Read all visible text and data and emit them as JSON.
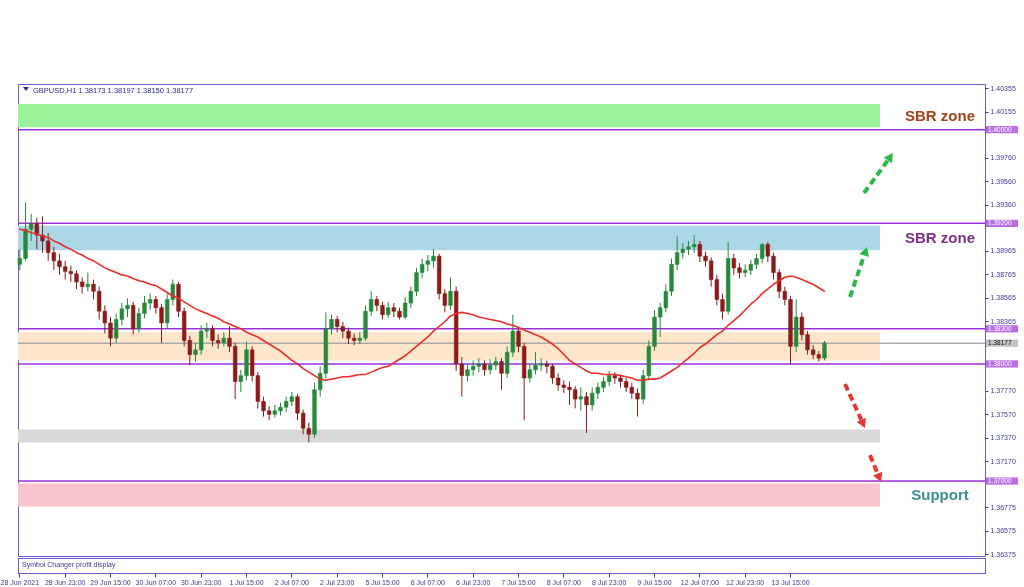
{
  "chart_data": {
    "type": "candlestick",
    "title": "GBPUSD,H1 1.38173 1.38197 1.38150 1.38177",
    "categories": [
      "28 Jun 2021",
      null,
      null,
      null,
      null,
      null,
      null,
      null,
      "28 Jun 23:00",
      null,
      null,
      null,
      null,
      null,
      null,
      null,
      "29 Jun 15:00",
      null,
      null,
      null,
      null,
      null,
      null,
      null,
      "30 Jun 07:00",
      null,
      null,
      null,
      null,
      null,
      null,
      null,
      "30 Jun 23:00",
      null,
      null,
      null,
      null,
      null,
      null,
      null,
      "1 Jul 15:00",
      null,
      null,
      null,
      null,
      null,
      null,
      null,
      "2 Jul 07:00",
      null,
      null,
      null,
      null,
      null,
      null,
      null,
      "2 Jul 23:00",
      null,
      null,
      null,
      null,
      null,
      null,
      null,
      "5 Jul 15:00",
      null,
      null,
      null,
      null,
      null,
      null,
      null,
      "6 Jul 07:00",
      null,
      null,
      null,
      null,
      null,
      null,
      null,
      "6 Jul 23:00",
      null,
      null,
      null,
      null,
      null,
      null,
      null,
      "7 Jul 15:00",
      null,
      null,
      null,
      null,
      null,
      null,
      null,
      "8 Jul 07:00",
      null,
      null,
      null,
      null,
      null,
      null,
      null,
      "8 Jul 23:00",
      null,
      null,
      null,
      null,
      null,
      null,
      null,
      "9 Jul 15:00",
      null,
      null,
      null,
      null,
      null,
      null,
      null,
      "12 Jul 07:00",
      null,
      null,
      null,
      null,
      null,
      null,
      null,
      "12 Jul 23:00",
      null,
      null,
      null,
      null,
      null,
      null,
      null,
      "13 Jul 15:00",
      null,
      null,
      null,
      null,
      null,
      null,
      null,
      null,
      null,
      null,
      null,
      null,
      null,
      null,
      null,
      null,
      null,
      null,
      null,
      null,
      null,
      null,
      null,
      null,
      null,
      null,
      null,
      null,
      null,
      null,
      null,
      null,
      null,
      null
    ],
    "ohlc": [
      [
        1.3885,
        1.3898,
        1.388,
        1.389
      ],
      [
        1.389,
        1.3938,
        1.3888,
        1.3915
      ],
      [
        1.3915,
        1.3928,
        1.3905,
        1.392
      ],
      [
        1.392,
        1.3925,
        1.3898,
        1.391
      ],
      [
        1.391,
        1.3926,
        1.3895,
        1.3905
      ],
      [
        1.3905,
        1.3912,
        1.3888,
        1.3895
      ],
      [
        1.3895,
        1.39,
        1.388,
        1.3888
      ],
      [
        1.3888,
        1.3894,
        1.3876,
        1.3883
      ],
      [
        1.3883,
        1.3888,
        1.3872,
        1.3879
      ],
      [
        1.3879,
        1.3884,
        1.387,
        1.3877
      ],
      [
        1.3877,
        1.388,
        1.3864,
        1.387
      ],
      [
        1.387,
        1.3874,
        1.386,
        1.3866
      ],
      [
        1.3866,
        1.3878,
        1.3862,
        1.3868
      ],
      [
        1.3868,
        1.3872,
        1.3855,
        1.3862
      ],
      [
        1.3862,
        1.3866,
        1.3838,
        1.3845
      ],
      [
        1.3845,
        1.385,
        1.3826,
        1.3835
      ],
      [
        1.3835,
        1.384,
        1.3815,
        1.3822
      ],
      [
        1.3822,
        1.3843,
        1.3818,
        1.3838
      ],
      [
        1.3838,
        1.3852,
        1.3833,
        1.3847
      ],
      [
        1.3847,
        1.3856,
        1.384,
        1.385
      ],
      [
        1.385,
        1.3853,
        1.3825,
        1.383
      ],
      [
        1.383,
        1.3848,
        1.3827,
        1.3843
      ],
      [
        1.3843,
        1.3858,
        1.3839,
        1.3852
      ],
      [
        1.3852,
        1.386,
        1.3846,
        1.3855
      ],
      [
        1.3855,
        1.3858,
        1.3843,
        1.3848
      ],
      [
        1.3848,
        1.3851,
        1.3818,
        1.3835
      ],
      [
        1.3835,
        1.386,
        1.383,
        1.3855
      ],
      [
        1.3855,
        1.3872,
        1.385,
        1.3868
      ],
      [
        1.3868,
        1.387,
        1.384,
        1.3845
      ],
      [
        1.3845,
        1.3848,
        1.3815,
        1.382
      ],
      [
        1.382,
        1.3824,
        1.3799,
        1.3808
      ],
      [
        1.3808,
        1.3818,
        1.3802,
        1.3812
      ],
      [
        1.3812,
        1.3833,
        1.3808,
        1.3828
      ],
      [
        1.3828,
        1.3835,
        1.3822,
        1.383
      ],
      [
        1.383,
        1.3833,
        1.3815,
        1.382
      ],
      [
        1.382,
        1.3825,
        1.3813,
        1.3818
      ],
      [
        1.3818,
        1.3827,
        1.3815,
        1.3822
      ],
      [
        1.3822,
        1.3832,
        1.381,
        1.3815
      ],
      [
        1.3815,
        1.3818,
        1.377,
        1.3785
      ],
      [
        1.3785,
        1.3795,
        1.3776,
        1.379
      ],
      [
        1.379,
        1.3819,
        1.3786,
        1.3812
      ],
      [
        1.3812,
        1.3815,
        1.3785,
        1.379
      ],
      [
        1.379,
        1.3793,
        1.3762,
        1.3768
      ],
      [
        1.3768,
        1.3772,
        1.3755,
        1.376
      ],
      [
        1.376,
        1.3764,
        1.3752,
        1.3757
      ],
      [
        1.3757,
        1.3765,
        1.3754,
        1.376
      ],
      [
        1.376,
        1.3767,
        1.3756,
        1.3763
      ],
      [
        1.3763,
        1.3772,
        1.3759,
        1.3768
      ],
      [
        1.3768,
        1.3776,
        1.3764,
        1.3772
      ],
      [
        1.3772,
        1.3774,
        1.3752,
        1.3758
      ],
      [
        1.3758,
        1.3761,
        1.374,
        1.3745
      ],
      [
        1.3745,
        1.375,
        1.3733,
        1.374
      ],
      [
        1.374,
        1.3784,
        1.3737,
        1.3778
      ],
      [
        1.3778,
        1.3798,
        1.3772,
        1.3792
      ],
      [
        1.3792,
        1.3844,
        1.3788,
        1.383
      ],
      [
        1.383,
        1.3842,
        1.3825,
        1.3838
      ],
      [
        1.3838,
        1.3841,
        1.3827,
        1.3832
      ],
      [
        1.3832,
        1.3836,
        1.3822,
        1.3828
      ],
      [
        1.3828,
        1.3831,
        1.3817,
        1.3822
      ],
      [
        1.3822,
        1.3826,
        1.3816,
        1.382
      ],
      [
        1.382,
        1.3827,
        1.3817,
        1.3822
      ],
      [
        1.3822,
        1.385,
        1.382,
        1.3845
      ],
      [
        1.3845,
        1.3862,
        1.3841,
        1.3855
      ],
      [
        1.3855,
        1.3858,
        1.3845,
        1.385
      ],
      [
        1.385,
        1.3853,
        1.3838,
        1.3842
      ],
      [
        1.3842,
        1.3853,
        1.3839,
        1.3848
      ],
      [
        1.3848,
        1.3852,
        1.384,
        1.3845
      ],
      [
        1.3845,
        1.3848,
        1.3838,
        1.384
      ],
      [
        1.384,
        1.3857,
        1.3838,
        1.3852
      ],
      [
        1.3852,
        1.3866,
        1.3848,
        1.3862
      ],
      [
        1.3862,
        1.3882,
        1.3858,
        1.3878
      ],
      [
        1.3878,
        1.389,
        1.3873,
        1.3885
      ],
      [
        1.3885,
        1.3893,
        1.3879,
        1.3888
      ],
      [
        1.3888,
        1.3898,
        1.3882,
        1.3892
      ],
      [
        1.3892,
        1.3894,
        1.3855,
        1.386
      ],
      [
        1.386,
        1.3864,
        1.3844,
        1.385
      ],
      [
        1.385,
        1.3874,
        1.3846,
        1.3862
      ],
      [
        1.3862,
        1.3866,
        1.3794,
        1.38
      ],
      [
        1.38,
        1.3806,
        1.3772,
        1.379
      ],
      [
        1.379,
        1.38,
        1.3785,
        1.3795
      ],
      [
        1.3795,
        1.3803,
        1.379,
        1.3798
      ],
      [
        1.3798,
        1.3805,
        1.3793,
        1.38
      ],
      [
        1.38,
        1.3803,
        1.379,
        1.3795
      ],
      [
        1.3795,
        1.3804,
        1.3791,
        1.3799
      ],
      [
        1.3799,
        1.3806,
        1.3795,
        1.3802
      ],
      [
        1.3802,
        1.3805,
        1.3778,
        1.3792
      ],
      [
        1.3792,
        1.3815,
        1.3788,
        1.381
      ],
      [
        1.381,
        1.3842,
        1.3806,
        1.3828
      ],
      [
        1.3828,
        1.3832,
        1.381,
        1.3815
      ],
      [
        1.3815,
        1.3818,
        1.3752,
        1.3788
      ],
      [
        1.3788,
        1.38,
        1.3784,
        1.3795
      ],
      [
        1.3795,
        1.381,
        1.3791,
        1.3799
      ],
      [
        1.3799,
        1.3805,
        1.3794,
        1.38
      ],
      [
        1.38,
        1.3803,
        1.3792,
        1.3798
      ],
      [
        1.3798,
        1.38,
        1.3783,
        1.3788
      ],
      [
        1.3788,
        1.3792,
        1.3777,
        1.3782
      ],
      [
        1.3782,
        1.3786,
        1.3775,
        1.378
      ],
      [
        1.378,
        1.3785,
        1.3765,
        1.3778
      ],
      [
        1.3778,
        1.3781,
        1.3762,
        1.377
      ],
      [
        1.377,
        1.378,
        1.376,
        1.3772
      ],
      [
        1.3772,
        1.3776,
        1.3741,
        1.3765
      ],
      [
        1.3765,
        1.378,
        1.376,
        1.3775
      ],
      [
        1.3775,
        1.3784,
        1.377,
        1.378
      ],
      [
        1.378,
        1.3789,
        1.3776,
        1.3785
      ],
      [
        1.3785,
        1.3794,
        1.3781,
        1.379
      ],
      [
        1.379,
        1.3793,
        1.3783,
        1.3788
      ],
      [
        1.3788,
        1.3791,
        1.378,
        1.3785
      ],
      [
        1.3785,
        1.3788,
        1.3776,
        1.378
      ],
      [
        1.378,
        1.3784,
        1.377,
        1.3775
      ],
      [
        1.3775,
        1.3779,
        1.3755,
        1.377
      ],
      [
        1.377,
        1.3795,
        1.3766,
        1.379
      ],
      [
        1.379,
        1.382,
        1.3786,
        1.3815
      ],
      [
        1.3815,
        1.3846,
        1.3811,
        1.384
      ],
      [
        1.384,
        1.3852,
        1.3823,
        1.3848
      ],
      [
        1.3848,
        1.3868,
        1.3844,
        1.3862
      ],
      [
        1.3862,
        1.389,
        1.3858,
        1.3885
      ],
      [
        1.3885,
        1.3909,
        1.388,
        1.3895
      ],
      [
        1.3895,
        1.3903,
        1.389,
        1.3898
      ],
      [
        1.3898,
        1.3905,
        1.3893,
        1.39
      ],
      [
        1.39,
        1.391,
        1.3895,
        1.3902
      ],
      [
        1.3902,
        1.3905,
        1.3887,
        1.3892
      ],
      [
        1.3892,
        1.3896,
        1.3883,
        1.3888
      ],
      [
        1.3888,
        1.3891,
        1.3866,
        1.3872
      ],
      [
        1.3872,
        1.3876,
        1.385,
        1.3855
      ],
      [
        1.3855,
        1.386,
        1.3838,
        1.3845
      ],
      [
        1.3845,
        1.3904,
        1.3842,
        1.389
      ],
      [
        1.389,
        1.3894,
        1.3876,
        1.3882
      ],
      [
        1.3882,
        1.3886,
        1.3873,
        1.3878
      ],
      [
        1.3878,
        1.3885,
        1.3874,
        1.388
      ],
      [
        1.388,
        1.3889,
        1.3876,
        1.3885
      ],
      [
        1.3885,
        1.3894,
        1.3881,
        1.389
      ],
      [
        1.389,
        1.3903,
        1.3886,
        1.3902
      ],
      [
        1.3902,
        1.3904,
        1.3887,
        1.3892
      ],
      [
        1.3892,
        1.3895,
        1.3872,
        1.3878
      ],
      [
        1.3878,
        1.3881,
        1.3856,
        1.3862
      ],
      [
        1.3862,
        1.3866,
        1.385,
        1.3855
      ],
      [
        1.3855,
        1.3858,
        1.38,
        1.3815
      ],
      [
        1.3815,
        1.3855,
        1.381,
        1.384
      ],
      [
        1.384,
        1.3844,
        1.382,
        1.3825
      ],
      [
        1.3825,
        1.3828,
        1.3808,
        1.3812
      ],
      [
        1.3812,
        1.3816,
        1.3804,
        1.3808
      ],
      [
        1.3808,
        1.3811,
        1.3802,
        1.3805
      ],
      [
        1.3805,
        1.38197,
        1.3803,
        1.38177
      ],
      null,
      null,
      null,
      null,
      null,
      null,
      null,
      null,
      null,
      null,
      null,
      null,
      null,
      null,
      null,
      null,
      null,
      null,
      null,
      null,
      null,
      null,
      null,
      null,
      null,
      null,
      null,
      null
    ],
    "colors": [
      "#26893a",
      "#26893a",
      "#26893a",
      "#8c1c1c",
      "#8c1c1c",
      "#8c1c1c",
      "#8c1c1c",
      "#8c1c1c",
      "#8c1c1c",
      "#8c1c1c",
      "#8c1c1c",
      "#8c1c1c",
      "#26893a",
      "#8c1c1c",
      "#8c1c1c",
      "#8c1c1c",
      "#8c1c1c",
      "#26893a",
      "#26893a",
      "#26893a",
      "#8c1c1c",
      "#26893a",
      "#26893a",
      "#26893a",
      "#8c1c1c",
      "#8c1c1c",
      "#26893a",
      "#26893a",
      "#8c1c1c",
      "#8c1c1c",
      "#8c1c1c",
      "#26893a",
      "#26893a",
      "#26893a",
      "#8c1c1c",
      "#8c1c1c",
      "#26893a",
      "#8c1c1c",
      "#8c1c1c",
      "#26893a",
      "#26893a",
      "#8c1c1c",
      "#8c1c1c",
      "#8c1c1c",
      "#8c1c1c",
      "#26893a",
      "#26893a",
      "#26893a",
      "#26893a",
      "#8c1c1c",
      "#8c1c1c",
      "#8c1c1c",
      "#26893a",
      "#26893a",
      "#26893a",
      "#26893a",
      "#8c1c1c",
      "#8c1c1c",
      "#8c1c1c",
      "#8c1c1c",
      "#26893a",
      "#26893a",
      "#26893a",
      "#8c1c1c",
      "#8c1c1c",
      "#26893a",
      "#8c1c1c",
      "#8c1c1c",
      "#26893a",
      "#26893a",
      "#26893a",
      "#26893a",
      "#26893a",
      "#26893a",
      "#8c1c1c",
      "#8c1c1c",
      "#26893a",
      "#8c1c1c",
      "#8c1c1c",
      "#26893a",
      "#26893a",
      "#26893a",
      "#8c1c1c",
      "#26893a",
      "#26893a",
      "#8c1c1c",
      "#26893a",
      "#26893a",
      "#8c1c1c",
      "#8c1c1c",
      "#26893a",
      "#26893a",
      "#26893a",
      "#8c1c1c",
      "#8c1c1c",
      "#8c1c1c",
      "#8c1c1c",
      "#8c1c1c",
      "#8c1c1c",
      "#26893a",
      "#8c1c1c",
      "#26893a",
      "#26893a",
      "#26893a",
      "#26893a",
      "#8c1c1c",
      "#8c1c1c",
      "#8c1c1c",
      "#8c1c1c",
      "#8c1c1c",
      "#26893a",
      "#26893a",
      "#26893a",
      "#26893a",
      "#26893a",
      "#26893a",
      "#26893a",
      "#26893a",
      "#26893a",
      "#26893a",
      "#8c1c1c",
      "#8c1c1c",
      "#8c1c1c",
      "#8c1c1c",
      "#8c1c1c",
      "#26893a",
      "#8c1c1c",
      "#8c1c1c",
      "#26893a",
      "#26893a",
      "#26893a",
      "#26893a",
      "#8c1c1c",
      "#8c1c1c",
      "#8c1c1c",
      "#8c1c1c",
      "#8c1c1c",
      "#26893a",
      "#8c1c1c",
      "#8c1c1c",
      "#8c1c1c",
      "#8c1c1c",
      "#26893a",
      null,
      null,
      null,
      null,
      null,
      null,
      null,
      null,
      null,
      null,
      null,
      null,
      null,
      null,
      null,
      null,
      null,
      null,
      null,
      null,
      null,
      null,
      null,
      null,
      null,
      null,
      null,
      null
    ],
    "series": [
      {
        "type": "line",
        "color": "#e8302a",
        "values": [
          1.3915,
          1.3914,
          1.3912,
          1.3911,
          1.3909,
          1.3908,
          1.3905,
          1.3903,
          1.39,
          1.3898,
          1.3895,
          1.3893,
          1.389,
          1.3888,
          1.3885,
          1.3882,
          1.388,
          1.3878,
          1.3876,
          1.3875,
          1.3873,
          1.3871,
          1.387,
          1.3868,
          1.3867,
          1.3864,
          1.3861,
          1.3858,
          1.3856,
          1.3853,
          1.385,
          1.3847,
          1.3845,
          1.3843,
          1.3841,
          1.3839,
          1.3836,
          1.3834,
          1.3832,
          1.383,
          1.3827,
          1.3825,
          1.3823,
          1.382,
          1.3817,
          1.3814,
          1.3811,
          1.3807,
          1.3803,
          1.38,
          1.3796,
          1.3793,
          1.379,
          1.3787,
          1.3786,
          1.3787,
          1.3788,
          1.3789,
          1.3789,
          1.379,
          1.3791,
          1.3791,
          1.3793,
          1.3795,
          1.3797,
          1.3798,
          1.3801,
          1.3804,
          1.3807,
          1.3811,
          1.3815,
          1.3819,
          1.3823,
          1.3828,
          1.3832,
          1.3836,
          1.3841,
          1.3843,
          1.3844,
          1.3843,
          1.3842,
          1.384,
          1.3839,
          1.3838,
          1.3837,
          1.3836,
          1.3834,
          1.3833,
          1.3831,
          1.3829,
          1.3827,
          1.3825,
          1.3823,
          1.382,
          1.3817,
          1.3813,
          1.3808,
          1.3803,
          1.38,
          1.3797,
          1.3794,
          1.3792,
          1.3792,
          1.3791,
          1.3791,
          1.3791,
          1.379,
          1.3789,
          1.3788,
          1.3786,
          1.3786,
          1.3787,
          1.3787,
          1.3788,
          1.3791,
          1.3794,
          1.3797,
          1.3801,
          1.3805,
          1.3809,
          1.3814,
          1.3817,
          1.3821,
          1.3825,
          1.3828,
          1.3833,
          1.3837,
          1.3841,
          1.3846,
          1.3851,
          1.3855,
          1.386,
          1.3864,
          1.3868,
          1.3871,
          1.3874,
          1.3875,
          1.3874,
          1.3872,
          1.387,
          1.3868,
          1.3865,
          1.3862,
          null,
          null,
          null,
          null,
          null,
          null,
          null,
          null,
          null,
          null,
          null,
          null,
          null,
          null,
          null,
          null,
          null,
          null,
          null,
          null,
          null,
          null,
          null,
          null,
          null,
          null,
          null,
          null
        ]
      }
    ],
    "ylim": [
      1.3636,
      1.4039
    ],
    "yticks": [
      1.40355,
      1.40155,
      {
        "value": 1.3976,
        "label": "1.39760"
      },
      {
        "value": 1.3956,
        "label": "1.39560"
      },
      {
        "value": 1.3936,
        "label": "1.39360"
      },
      1.38965,
      1.38765,
      1.38565,
      1.38365,
      {
        "value": 1.3777,
        "label": "1.37770"
      },
      {
        "value": 1.3757,
        "label": "1.37570"
      },
      {
        "value": 1.3737,
        "label": "1.37370"
      },
      {
        "value": 1.3717,
        "label": "1.37170"
      },
      1.36775,
      1.36575,
      1.36375
    ],
    "bands": [
      {
        "axis": "y",
        "from": 1.4002,
        "to": 1.4022,
        "color": "#9af59a",
        "label": "SBR zone"
      },
      {
        "axis": "y",
        "from": 1.3897,
        "to": 1.3918,
        "color": "#abd7e6",
        "label": "SBR zone"
      },
      {
        "axis": "y",
        "from": 1.3803,
        "to": 1.3827,
        "color": "#fde6c9"
      },
      {
        "axis": "y",
        "from": 1.3733,
        "to": 1.3744,
        "color": "#d9d9d9"
      },
      {
        "axis": "y",
        "from": 1.3678,
        "to": 1.3698,
        "color": "#fac5cf",
        "label": "Support"
      }
    ],
    "ref_lines": [
      {
        "axis": "y",
        "value": 1.4,
        "label": "1.40000",
        "color": "#9b30d9"
      },
      {
        "axis": "y",
        "value": 1.392,
        "label": "1.39200",
        "color": "#9b30d9"
      },
      {
        "axis": "y",
        "value": 1.383,
        "label": "1.38300",
        "color": "#9b30d9"
      },
      {
        "axis": "y",
        "value": 1.38177,
        "label": "1.38177",
        "color": "#a9a9a9"
      },
      {
        "axis": "y",
        "value": 1.38,
        "label": "1.38000",
        "color": "#9b30d9"
      },
      {
        "axis": "y",
        "value": 1.37,
        "label": "1.37000",
        "color": "#9b30d9"
      }
    ],
    "annotations": [
      "Symbol Changer profit display"
    ]
  }
}
